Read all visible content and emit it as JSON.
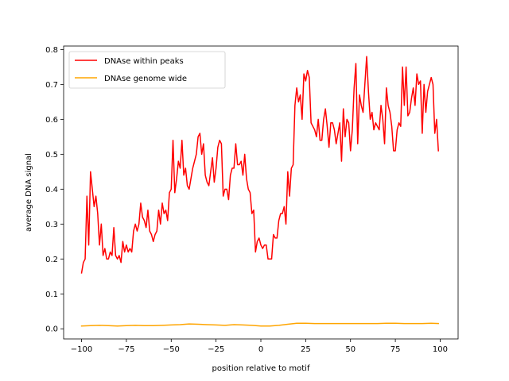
{
  "chart_data": {
    "type": "line",
    "title": "",
    "xlabel": "position relative to motif",
    "ylabel": "average DNA signal",
    "xlim": [
      -110,
      110
    ],
    "ylim": [
      -0.029,
      0.81
    ],
    "xticks": [
      -100,
      -75,
      -50,
      -25,
      0,
      25,
      50,
      75,
      100
    ],
    "xtick_labels": [
      "−100",
      "−75",
      "−50",
      "−25",
      "0",
      "25",
      "50",
      "75",
      "100"
    ],
    "yticks": [
      0.0,
      0.1,
      0.2,
      0.3,
      0.4,
      0.5,
      0.6,
      0.7,
      0.8
    ],
    "ytick_labels": [
      "0.0",
      "0.1",
      "0.2",
      "0.3",
      "0.4",
      "0.5",
      "0.6",
      "0.7",
      "0.8"
    ],
    "grid": false,
    "legend_position": "upper-left",
    "series": [
      {
        "name": "DNAse within peaks",
        "color": "#ff0000",
        "x": [
          -100,
          -99,
          -98,
          -97,
          -96,
          -95,
          -94,
          -93,
          -92,
          -91,
          -90,
          -89,
          -88,
          -87,
          -86,
          -85,
          -84,
          -83,
          -82,
          -81,
          -80,
          -79,
          -78,
          -77,
          -76,
          -75,
          -74,
          -73,
          -72,
          -71,
          -70,
          -69,
          -68,
          -67,
          -66,
          -65,
          -64,
          -63,
          -62,
          -61,
          -60,
          -59,
          -58,
          -57,
          -56,
          -55,
          -54,
          -53,
          -52,
          -51,
          -50,
          -49,
          -48,
          -47,
          -46,
          -45,
          -44,
          -43,
          -42,
          -41,
          -40,
          -39,
          -38,
          -37,
          -36,
          -35,
          -34,
          -33,
          -32,
          -31,
          -30,
          -29,
          -28,
          -27,
          -26,
          -25,
          -24,
          -23,
          -22,
          -21,
          -20,
          -19,
          -18,
          -17,
          -16,
          -15,
          -14,
          -13,
          -12,
          -11,
          -10,
          -9,
          -8,
          -7,
          -6,
          -5,
          -4,
          -3,
          -2,
          -1,
          0,
          1,
          2,
          3,
          4,
          5,
          6,
          7,
          8,
          9,
          10,
          11,
          12,
          13,
          14,
          15,
          16,
          17,
          18,
          19,
          20,
          21,
          22,
          23,
          24,
          25,
          26,
          27,
          28,
          29,
          30,
          31,
          32,
          33,
          34,
          35,
          36,
          37,
          38,
          39,
          40,
          41,
          42,
          43,
          44,
          45,
          46,
          47,
          48,
          49,
          50,
          51,
          52,
          53,
          54,
          55,
          56,
          57,
          58,
          59,
          60,
          61,
          62,
          63,
          64,
          65,
          66,
          67,
          68,
          69,
          70,
          71,
          72,
          73,
          74,
          75,
          76,
          77,
          78,
          79,
          80,
          81,
          82,
          83,
          84,
          85,
          86,
          87,
          88,
          89,
          90,
          91,
          92,
          93,
          94,
          95,
          96,
          97,
          98,
          99
        ],
        "values": [
          0.16,
          0.19,
          0.2,
          0.38,
          0.24,
          0.45,
          0.4,
          0.35,
          0.38,
          0.33,
          0.24,
          0.3,
          0.21,
          0.23,
          0.2,
          0.2,
          0.22,
          0.21,
          0.29,
          0.21,
          0.2,
          0.21,
          0.19,
          0.25,
          0.22,
          0.24,
          0.22,
          0.23,
          0.22,
          0.28,
          0.3,
          0.28,
          0.3,
          0.36,
          0.32,
          0.31,
          0.29,
          0.34,
          0.28,
          0.27,
          0.25,
          0.27,
          0.28,
          0.34,
          0.3,
          0.36,
          0.33,
          0.34,
          0.31,
          0.39,
          0.4,
          0.54,
          0.39,
          0.43,
          0.48,
          0.46,
          0.54,
          0.44,
          0.46,
          0.41,
          0.4,
          0.43,
          0.46,
          0.48,
          0.5,
          0.55,
          0.56,
          0.5,
          0.53,
          0.44,
          0.42,
          0.41,
          0.45,
          0.49,
          0.42,
          0.46,
          0.52,
          0.54,
          0.53,
          0.38,
          0.4,
          0.4,
          0.37,
          0.44,
          0.46,
          0.46,
          0.53,
          0.47,
          0.47,
          0.48,
          0.44,
          0.5,
          0.43,
          0.4,
          0.39,
          0.33,
          0.34,
          0.22,
          0.25,
          0.26,
          0.24,
          0.23,
          0.24,
          0.24,
          0.2,
          0.2,
          0.2,
          0.27,
          0.26,
          0.26,
          0.31,
          0.33,
          0.33,
          0.35,
          0.3,
          0.45,
          0.38,
          0.46,
          0.47,
          0.64,
          0.69,
          0.65,
          0.67,
          0.6,
          0.73,
          0.71,
          0.74,
          0.72,
          0.59,
          0.58,
          0.57,
          0.55,
          0.6,
          0.54,
          0.54,
          0.6,
          0.63,
          0.58,
          0.52,
          0.59,
          0.59,
          0.57,
          0.53,
          0.56,
          0.59,
          0.48,
          0.63,
          0.55,
          0.6,
          0.59,
          0.51,
          0.57,
          0.69,
          0.76,
          0.53,
          0.67,
          0.64,
          0.62,
          0.7,
          0.78,
          0.68,
          0.6,
          0.62,
          0.57,
          0.59,
          0.58,
          0.57,
          0.64,
          0.6,
          0.53,
          0.69,
          0.64,
          0.62,
          0.58,
          0.51,
          0.51,
          0.57,
          0.59,
          0.58,
          0.75,
          0.64,
          0.75,
          0.61,
          0.62,
          0.66,
          0.69,
          0.64,
          0.73,
          0.7,
          0.71,
          0.56,
          0.7,
          0.62,
          0.68,
          0.7,
          0.72,
          0.7,
          0.56,
          0.6,
          0.51
        ],
        "line_width": 1.5
      },
      {
        "name": "DNAse genome wide",
        "color": "#ffa500",
        "x": [
          -100,
          -95,
          -90,
          -85,
          -80,
          -75,
          -70,
          -65,
          -60,
          -55,
          -50,
          -45,
          -40,
          -35,
          -30,
          -25,
          -20,
          -15,
          -10,
          -5,
          0,
          5,
          10,
          15,
          20,
          25,
          30,
          35,
          40,
          45,
          50,
          55,
          60,
          65,
          70,
          75,
          80,
          85,
          90,
          95,
          99
        ],
        "values": [
          0.008,
          0.009,
          0.01,
          0.009,
          0.008,
          0.009,
          0.01,
          0.009,
          0.009,
          0.01,
          0.011,
          0.012,
          0.014,
          0.013,
          0.012,
          0.011,
          0.01,
          0.012,
          0.011,
          0.01,
          0.008,
          0.008,
          0.01,
          0.013,
          0.016,
          0.016,
          0.015,
          0.015,
          0.015,
          0.015,
          0.015,
          0.015,
          0.015,
          0.015,
          0.016,
          0.016,
          0.015,
          0.015,
          0.015,
          0.016,
          0.015
        ],
        "line_width": 1.5
      }
    ]
  }
}
